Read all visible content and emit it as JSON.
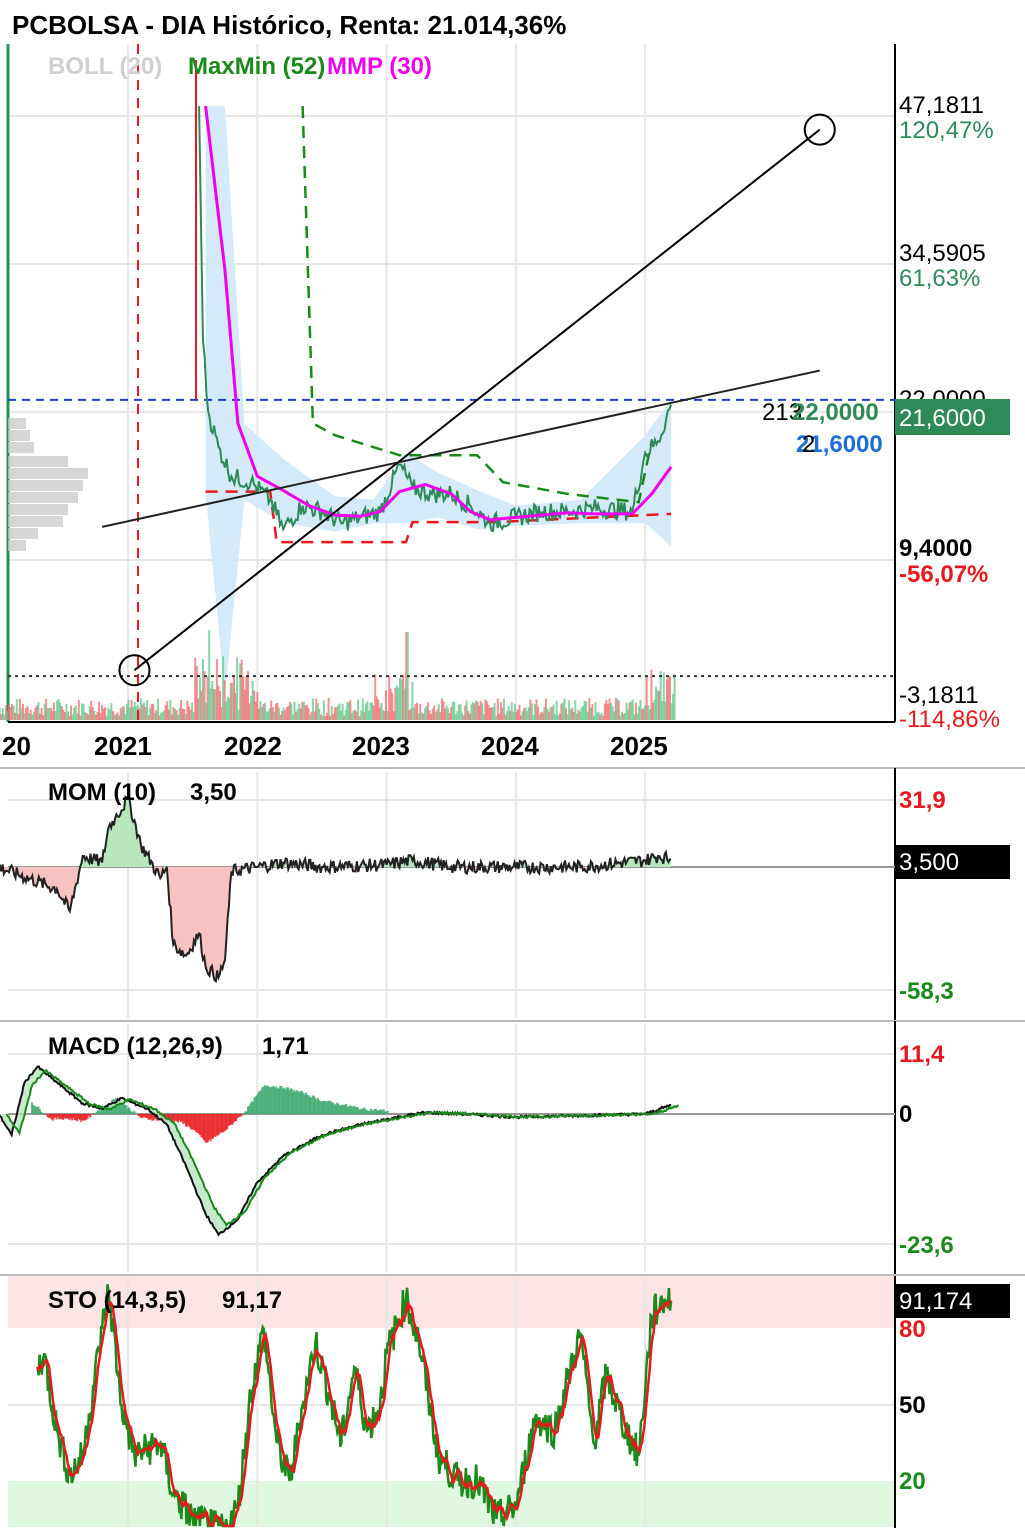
{
  "header": {
    "title": "PCBOLSA - DIA Histórico, Renta: 21.014,36%"
  },
  "colors": {
    "price": "#2e8b57",
    "boll_band": "#cfe8f7",
    "maxmin": "#1a8a1a",
    "mmp": "#ee00ee",
    "neg": "#e8191d",
    "blue": "#1d6fd6",
    "black": "#000000"
  },
  "main": {
    "legend": {
      "boll": "BOLL (20)",
      "maxmin": "MaxMin (52)",
      "mmp": "MMP (30)"
    },
    "price_axis": [
      {
        "value": "47,1811",
        "pct": "120,47%"
      },
      {
        "value": "34,5905",
        "pct": "61,63%"
      },
      {
        "value": "22,0000",
        "pct": ""
      },
      {
        "value": "9,4000",
        "pct": "-56,07%"
      },
      {
        "value": "-3,1811",
        "pct": "-114,86%"
      }
    ],
    "current_price": "21,6000",
    "cursor_labels": {
      "a": "213",
      "b": "22,0000",
      "c": "2",
      "d": "21,6000"
    },
    "years": [
      "20",
      "2021",
      "2022",
      "2023",
      "2024",
      "2025"
    ]
  },
  "mom": {
    "label": "MOM (10)",
    "value": "3,50",
    "axis_max": "31,9",
    "axis_min": "-58,3",
    "current": "3,500"
  },
  "macd": {
    "label": "MACD (12,26,9)",
    "value": "1,71",
    "axis_max": "11,4",
    "axis_zero": "0",
    "axis_min": "-23,6"
  },
  "sto": {
    "label": "STO (14,3,5)",
    "value": "91,17",
    "current": "91,174",
    "levels": [
      "80",
      "50",
      "20"
    ]
  },
  "chart_data": {
    "type": "line",
    "title": "PCBOLSA - DIA Histórico, Renta: 21.014,36%",
    "x": [
      "2020",
      "2021",
      "2022",
      "2023",
      "2024",
      "2025"
    ],
    "price_series": {
      "name": "PCBOLSA",
      "points": [
        [
          2021.55,
          47.0
        ],
        [
          2021.58,
          27.0
        ],
        [
          2021.62,
          21.0
        ],
        [
          2021.7,
          18.0
        ],
        [
          2021.8,
          15.5
        ],
        [
          2021.95,
          15.0
        ],
        [
          2022.1,
          13.5
        ],
        [
          2022.2,
          11.0
        ],
        [
          2022.35,
          13.0
        ],
        [
          2022.5,
          12.5
        ],
        [
          2022.65,
          11.5
        ],
        [
          2022.8,
          12.0
        ],
        [
          2022.95,
          12.5
        ],
        [
          2023.1,
          16.5
        ],
        [
          2023.2,
          14.5
        ],
        [
          2023.35,
          14.0
        ],
        [
          2023.5,
          14.0
        ],
        [
          2023.65,
          13.0
        ],
        [
          2023.8,
          11.5
        ],
        [
          2024.0,
          12.0
        ],
        [
          2024.2,
          12.5
        ],
        [
          2024.4,
          12.5
        ],
        [
          2024.6,
          12.8
        ],
        [
          2024.9,
          12.5
        ],
        [
          2025.0,
          17.5
        ],
        [
          2025.1,
          18.5
        ],
        [
          2025.2,
          21.6
        ]
      ]
    },
    "mmp_series": {
      "name": "MMP (30)",
      "points": [
        [
          2021.6,
          47.0
        ],
        [
          2021.75,
          33.0
        ],
        [
          2021.85,
          20.0
        ],
        [
          2022.0,
          15.5
        ],
        [
          2022.2,
          14.3
        ],
        [
          2022.4,
          13.0
        ],
        [
          2022.6,
          12.2
        ],
        [
          2022.8,
          12.1
        ],
        [
          2022.95,
          12.5
        ],
        [
          2023.1,
          14.2
        ],
        [
          2023.3,
          14.8
        ],
        [
          2023.5,
          14.0
        ],
        [
          2023.65,
          12.5
        ],
        [
          2023.8,
          11.8
        ],
        [
          2024.0,
          12.0
        ],
        [
          2024.2,
          12.2
        ],
        [
          2024.4,
          12.4
        ],
        [
          2024.6,
          12.3
        ],
        [
          2024.9,
          12.3
        ],
        [
          2025.05,
          14.0
        ],
        [
          2025.2,
          16.3
        ]
      ]
    },
    "max_series": {
      "name": "MaxMin (52)",
      "points": [
        [
          2022.35,
          47.0
        ],
        [
          2022.43,
          20.0
        ],
        [
          2022.6,
          19.0
        ],
        [
          2023.1,
          17.3
        ],
        [
          2023.7,
          17.3
        ],
        [
          2023.9,
          15.0
        ],
        [
          2024.4,
          14.0
        ],
        [
          2024.95,
          13.3
        ],
        [
          2025.05,
          18.5
        ]
      ]
    },
    "min_series": {
      "name": "MaxMin (52)",
      "points": [
        [
          2021.6,
          14.2
        ],
        [
          2022.1,
          14.2
        ],
        [
          2022.15,
          9.9
        ],
        [
          2023.15,
          9.9
        ],
        [
          2023.2,
          11.6
        ],
        [
          2023.8,
          11.6
        ],
        [
          2023.85,
          11.6
        ],
        [
          2025.2,
          12.3
        ]
      ]
    },
    "boll_band": {
      "name": "BOLL (20)",
      "upper": [
        [
          2021.6,
          47.0
        ],
        [
          2021.75,
          47.0
        ],
        [
          2021.9,
          20.0
        ],
        [
          2022.2,
          17.0
        ],
        [
          2022.6,
          13.8
        ],
        [
          2022.9,
          13.5
        ],
        [
          2023.15,
          17.5
        ],
        [
          2023.4,
          15.8
        ],
        [
          2023.7,
          14.3
        ],
        [
          2024.0,
          13.0
        ],
        [
          2024.5,
          13.5
        ],
        [
          2025.0,
          19.0
        ],
        [
          2025.2,
          22.0
        ]
      ],
      "lower": [
        [
          2021.6,
          14.0
        ],
        [
          2021.75,
          -3.0
        ],
        [
          2021.9,
          13.5
        ],
        [
          2022.2,
          11.5
        ],
        [
          2022.6,
          10.8
        ],
        [
          2022.9,
          11.5
        ],
        [
          2023.15,
          11.5
        ],
        [
          2023.4,
          12.0
        ],
        [
          2023.7,
          11.0
        ],
        [
          2024.0,
          11.3
        ],
        [
          2024.5,
          11.5
        ],
        [
          2025.0,
          11.5
        ],
        [
          2025.2,
          9.5
        ]
      ]
    },
    "reference_level": 22.0,
    "zero_level": -1.5,
    "trendlines": [
      {
        "from": [
          2021.05,
          -1.0
        ],
        "to": [
          2026.35,
          45.0
        ]
      },
      {
        "from": [
          2020.8,
          11.2
        ],
        "to": [
          2026.35,
          24.5
        ]
      }
    ],
    "mom_series": {
      "name": "MOM (10)",
      "points": [
        [
          2020.0,
          0
        ],
        [
          2020.45,
          -10
        ],
        [
          2020.55,
          -20
        ],
        [
          2020.65,
          5
        ],
        [
          2020.8,
          2
        ],
        [
          2020.85,
          18
        ],
        [
          2020.9,
          22
        ],
        [
          2021.0,
          31
        ],
        [
          2021.1,
          10
        ],
        [
          2021.25,
          -5
        ],
        [
          2021.3,
          0
        ],
        [
          2021.35,
          -35
        ],
        [
          2021.45,
          -40
        ],
        [
          2021.55,
          -30
        ],
        [
          2021.6,
          -45
        ],
        [
          2021.7,
          -50
        ],
        [
          2021.75,
          -42
        ],
        [
          2021.8,
          -2
        ],
        [
          2022.0,
          0
        ],
        [
          2022.2,
          2
        ],
        [
          2022.5,
          0
        ],
        [
          2023.0,
          1
        ],
        [
          2023.2,
          3
        ],
        [
          2023.5,
          0
        ],
        [
          2024.0,
          0
        ],
        [
          2024.5,
          0
        ],
        [
          2025.0,
          3
        ],
        [
          2025.1,
          5
        ],
        [
          2025.2,
          3.5
        ]
      ]
    },
    "macd_series": {
      "name": "MACD (12,26,9)",
      "points": [
        [
          2020.0,
          0
        ],
        [
          2020.1,
          -4
        ],
        [
          2020.2,
          6
        ],
        [
          2020.3,
          9
        ],
        [
          2020.5,
          5
        ],
        [
          2020.65,
          2
        ],
        [
          2020.8,
          1
        ],
        [
          2020.95,
          3
        ],
        [
          2021.15,
          1
        ],
        [
          2021.3,
          -2
        ],
        [
          2021.45,
          -10
        ],
        [
          2021.6,
          -19
        ],
        [
          2021.7,
          -23
        ],
        [
          2021.85,
          -20
        ],
        [
          2022.0,
          -13
        ],
        [
          2022.2,
          -8
        ],
        [
          2022.5,
          -4
        ],
        [
          2022.8,
          -2
        ],
        [
          2023.1,
          -0.5
        ],
        [
          2023.3,
          0.3
        ],
        [
          2023.6,
          0
        ],
        [
          2024.0,
          -0.6
        ],
        [
          2024.5,
          -0.3
        ],
        [
          2025.0,
          0
        ],
        [
          2025.2,
          1.71
        ]
      ]
    },
    "macd_histogram": [
      [
        2020.25,
        2.2
      ],
      [
        2020.4,
        -1.0
      ],
      [
        2020.5,
        -0.8
      ],
      [
        2020.65,
        -1.3
      ],
      [
        2020.9,
        3
      ],
      [
        2021.1,
        -0.8
      ],
      [
        2021.4,
        -1.5
      ],
      [
        2021.5,
        -3.0
      ],
      [
        2021.6,
        -5.5
      ],
      [
        2021.75,
        -3.0
      ],
      [
        2021.9,
        0.5
      ],
      [
        2022.05,
        5.5
      ],
      [
        2022.2,
        5.0
      ],
      [
        2022.35,
        4.0
      ],
      [
        2022.5,
        2.5
      ],
      [
        2022.65,
        1.8
      ],
      [
        2022.8,
        1.0
      ],
      [
        2023.0,
        0.6
      ]
    ],
    "sto_series": {
      "name": "STO (14,3,5)",
      "points": [
        [
          2020.3,
          65
        ],
        [
          2020.35,
          70
        ],
        [
          2020.45,
          40
        ],
        [
          2020.55,
          22
        ],
        [
          2020.65,
          30
        ],
        [
          2020.8,
          80
        ],
        [
          2020.85,
          95
        ],
        [
          2020.95,
          50
        ],
        [
          2021.05,
          30
        ],
        [
          2021.25,
          35
        ],
        [
          2021.35,
          15
        ],
        [
          2021.5,
          5
        ],
        [
          2021.65,
          2
        ],
        [
          2021.75,
          0
        ],
        [
          2021.85,
          10
        ],
        [
          2021.95,
          55
        ],
        [
          2022.05,
          80
        ],
        [
          2022.15,
          35
        ],
        [
          2022.25,
          20
        ],
        [
          2022.35,
          50
        ],
        [
          2022.45,
          75
        ],
        [
          2022.55,
          55
        ],
        [
          2022.65,
          35
        ],
        [
          2022.75,
          65
        ],
        [
          2022.85,
          40
        ],
        [
          2022.95,
          50
        ],
        [
          2023.0,
          70
        ],
        [
          2023.15,
          92
        ],
        [
          2023.25,
          75
        ],
        [
          2023.4,
          30
        ],
        [
          2023.55,
          20
        ],
        [
          2023.7,
          20
        ],
        [
          2023.85,
          5
        ],
        [
          2024.0,
          10
        ],
        [
          2024.15,
          45
        ],
        [
          2024.3,
          40
        ],
        [
          2024.4,
          60
        ],
        [
          2024.5,
          78
        ],
        [
          2024.6,
          35
        ],
        [
          2024.7,
          62
        ],
        [
          2024.85,
          40
        ],
        [
          2024.95,
          30
        ],
        [
          2025.05,
          85
        ],
        [
          2025.15,
          92
        ],
        [
          2025.2,
          91.17
        ]
      ]
    }
  }
}
